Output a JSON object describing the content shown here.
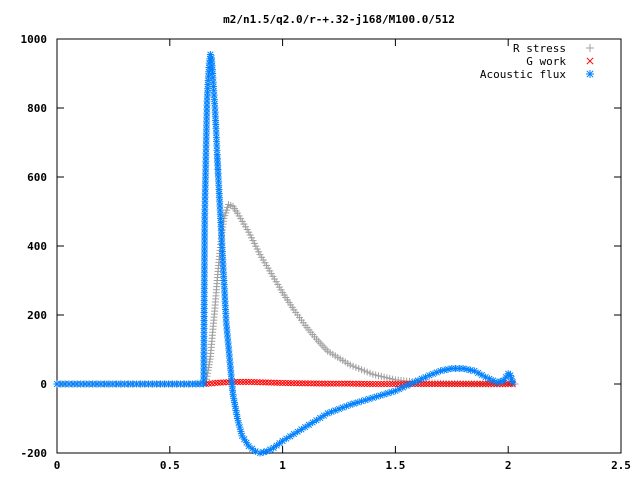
{
  "chart_data": {
    "type": "scatter",
    "title": "m2/n1.5/q2.0/r-+.32-j168/M100.0/512",
    "xlabel": "",
    "ylabel": "",
    "xlim": [
      0,
      2.5
    ],
    "ylim": [
      -200,
      1000
    ],
    "x_ticks": [
      "0",
      "0.5",
      "1",
      "1.5",
      "2",
      "2.5"
    ],
    "y_ticks": [
      "-200",
      "0",
      "200",
      "400",
      "600",
      "800",
      "1000"
    ],
    "grid": false,
    "legend_position": "top-right",
    "series": [
      {
        "name": "R stress",
        "marker": "+",
        "color": "#a0a0a0",
        "points": [
          [
            0.0,
            0
          ],
          [
            0.3,
            0
          ],
          [
            0.6,
            0
          ],
          [
            0.66,
            5
          ],
          [
            0.67,
            40
          ],
          [
            0.68,
            80
          ],
          [
            0.69,
            150
          ],
          [
            0.7,
            220
          ],
          [
            0.71,
            300
          ],
          [
            0.72,
            370
          ],
          [
            0.73,
            430
          ],
          [
            0.74,
            480
          ],
          [
            0.76,
            520
          ],
          [
            0.78,
            515
          ],
          [
            0.8,
            495
          ],
          [
            0.85,
            440
          ],
          [
            0.9,
            375
          ],
          [
            0.95,
            320
          ],
          [
            1.0,
            265
          ],
          [
            1.05,
            215
          ],
          [
            1.1,
            170
          ],
          [
            1.15,
            130
          ],
          [
            1.2,
            95
          ],
          [
            1.3,
            55
          ],
          [
            1.4,
            28
          ],
          [
            1.5,
            12
          ],
          [
            1.6,
            5
          ],
          [
            1.7,
            2
          ],
          [
            1.8,
            1
          ],
          [
            1.9,
            0.5
          ],
          [
            2.0,
            0.2
          ],
          [
            2.03,
            0
          ]
        ]
      },
      {
        "name": "G work",
        "marker": "x",
        "color": "#ff0000",
        "points": [
          [
            0.66,
            0
          ],
          [
            0.7,
            3
          ],
          [
            0.75,
            5
          ],
          [
            0.8,
            6
          ],
          [
            0.85,
            6
          ],
          [
            0.9,
            5
          ],
          [
            0.95,
            4
          ],
          [
            1.0,
            3
          ],
          [
            1.1,
            2
          ],
          [
            1.2,
            1
          ],
          [
            1.3,
            1
          ],
          [
            1.4,
            0
          ],
          [
            1.5,
            0
          ],
          [
            1.6,
            0
          ],
          [
            1.7,
            0
          ],
          [
            1.8,
            0
          ],
          [
            1.9,
            0
          ],
          [
            2.0,
            0
          ],
          [
            2.02,
            0
          ]
        ]
      },
      {
        "name": "Acoustic flux",
        "marker": "*",
        "color": "#0080ff",
        "points": [
          [
            0.0,
            0
          ],
          [
            0.3,
            0
          ],
          [
            0.6,
            0
          ],
          [
            0.65,
            0
          ],
          [
            0.655,
            495
          ],
          [
            0.665,
            820
          ],
          [
            0.67,
            880
          ],
          [
            0.675,
            930
          ],
          [
            0.68,
            955
          ],
          [
            0.685,
            945
          ],
          [
            0.69,
            900
          ],
          [
            0.695,
            850
          ],
          [
            0.7,
            800
          ],
          [
            0.705,
            740
          ],
          [
            0.71,
            665
          ],
          [
            0.715,
            600
          ],
          [
            0.72,
            540
          ],
          [
            0.725,
            480
          ],
          [
            0.73,
            420
          ],
          [
            0.735,
            360
          ],
          [
            0.74,
            300
          ],
          [
            0.745,
            240
          ],
          [
            0.75,
            180
          ],
          [
            0.76,
            110
          ],
          [
            0.77,
            40
          ],
          [
            0.78,
            -30
          ],
          [
            0.8,
            -100
          ],
          [
            0.82,
            -150
          ],
          [
            0.85,
            -180
          ],
          [
            0.88,
            -195
          ],
          [
            0.9,
            -200
          ],
          [
            0.93,
            -195
          ],
          [
            0.96,
            -185
          ],
          [
            1.0,
            -165
          ],
          [
            1.05,
            -145
          ],
          [
            1.1,
            -125
          ],
          [
            1.15,
            -105
          ],
          [
            1.2,
            -85
          ],
          [
            1.3,
            -60
          ],
          [
            1.4,
            -40
          ],
          [
            1.5,
            -20
          ],
          [
            1.55,
            -5
          ],
          [
            1.6,
            10
          ],
          [
            1.65,
            25
          ],
          [
            1.7,
            38
          ],
          [
            1.75,
            45
          ],
          [
            1.8,
            45
          ],
          [
            1.85,
            38
          ],
          [
            1.9,
            20
          ],
          [
            1.95,
            5
          ],
          [
            1.98,
            10
          ],
          [
            2.0,
            30
          ],
          [
            2.01,
            25
          ],
          [
            2.02,
            5
          ]
        ]
      }
    ]
  }
}
